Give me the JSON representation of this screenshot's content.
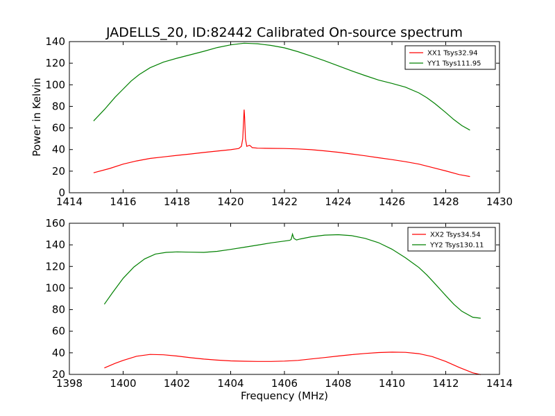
{
  "chart_data": [
    {
      "type": "line",
      "title": "JADELLS_20, ID:82442 Calibrated On-source spectrum",
      "xlabel": "",
      "ylabel": "Power in Kelvin",
      "xlim": [
        1414,
        1430
      ],
      "ylim": [
        0,
        140
      ],
      "xticks": [
        1414,
        1416,
        1418,
        1420,
        1422,
        1424,
        1426,
        1428,
        1430
      ],
      "yticks": [
        0,
        20,
        40,
        60,
        80,
        100,
        120,
        140
      ],
      "grid": false,
      "legend": "top-right",
      "series": [
        {
          "name": "XX1 Tsys32.94",
          "color": "#ff0000",
          "x": [
            1414.9,
            1415.5,
            1416.0,
            1416.5,
            1417.0,
            1417.5,
            1418.0,
            1418.5,
            1419.0,
            1419.5,
            1420.0,
            1420.3,
            1420.4,
            1420.45,
            1420.5,
            1420.52,
            1420.55,
            1420.6,
            1420.7,
            1420.75,
            1420.8,
            1421.0,
            1421.5,
            1422.0,
            1422.5,
            1423.0,
            1423.5,
            1424.0,
            1424.5,
            1425.0,
            1425.5,
            1426.0,
            1426.5,
            1427.0,
            1427.5,
            1428.0,
            1428.5,
            1428.9
          ],
          "values": [
            18.5,
            22.5,
            26.5,
            29.5,
            31.8,
            33.2,
            34.6,
            35.9,
            37.3,
            38.6,
            39.9,
            41.0,
            43.0,
            50.0,
            77.0,
            70.0,
            50.0,
            43.0,
            44.0,
            43.0,
            41.8,
            41.3,
            41.1,
            41.0,
            40.6,
            39.9,
            38.8,
            37.5,
            35.9,
            34.2,
            32.4,
            30.7,
            28.8,
            26.5,
            23.4,
            20.2,
            16.8,
            15.0
          ]
        },
        {
          "name": "YY1 Tsys111.95",
          "color": "#008000",
          "x": [
            1414.9,
            1415.3,
            1415.7,
            1416.0,
            1416.3,
            1416.6,
            1417.0,
            1417.5,
            1418.0,
            1418.5,
            1419.0,
            1419.5,
            1420.0,
            1420.5,
            1420.8,
            1421.0,
            1421.5,
            1422.0,
            1422.5,
            1423.0,
            1423.5,
            1424.0,
            1424.5,
            1425.0,
            1425.5,
            1426.0,
            1426.5,
            1427.0,
            1427.3,
            1427.6,
            1428.0,
            1428.3,
            1428.6,
            1428.9
          ],
          "values": [
            66.5,
            77.0,
            88.5,
            96.0,
            103.5,
            109.5,
            115.8,
            121.0,
            124.6,
            127.8,
            131.0,
            134.5,
            137.0,
            138.5,
            138.2,
            138.0,
            136.5,
            134.2,
            130.7,
            126.6,
            122.2,
            117.6,
            112.9,
            108.5,
            104.4,
            101.3,
            97.8,
            92.5,
            88.0,
            82.5,
            74.3,
            67.8,
            62.2,
            58.0
          ]
        }
      ]
    },
    {
      "type": "line",
      "title": "",
      "xlabel": "Frequency (MHz)",
      "ylabel": "",
      "xlim": [
        1398,
        1414
      ],
      "ylim": [
        20,
        160
      ],
      "xticks": [
        1398,
        1400,
        1402,
        1404,
        1406,
        1408,
        1410,
        1412,
        1414
      ],
      "yticks": [
        20,
        40,
        60,
        80,
        100,
        120,
        140,
        160
      ],
      "grid": false,
      "legend": "top-right",
      "series": [
        {
          "name": "XX2 Tsys34.54",
          "color": "#ff0000",
          "x": [
            1399.3,
            1399.7,
            1400.0,
            1400.5,
            1401.0,
            1401.5,
            1402.0,
            1402.5,
            1403.0,
            1403.5,
            1404.0,
            1404.5,
            1405.0,
            1405.5,
            1406.0,
            1406.5,
            1407.0,
            1407.5,
            1408.0,
            1408.5,
            1409.0,
            1409.5,
            1410.0,
            1410.5,
            1411.0,
            1411.5,
            1412.0,
            1412.5,
            1413.0,
            1413.3
          ],
          "values": [
            26.0,
            30.2,
            33.0,
            36.8,
            38.5,
            38.2,
            37.0,
            35.5,
            34.2,
            33.2,
            32.5,
            32.2,
            32.0,
            32.0,
            32.3,
            33.0,
            34.3,
            35.6,
            37.0,
            38.3,
            39.4,
            40.2,
            40.6,
            40.4,
            39.2,
            36.5,
            32.0,
            26.5,
            21.5,
            19.8
          ]
        },
        {
          "name": "YY2 Tsys130.11",
          "color": "#008000",
          "x": [
            1399.3,
            1399.6,
            1400.0,
            1400.4,
            1400.8,
            1401.2,
            1401.6,
            1402.0,
            1402.5,
            1403.0,
            1403.5,
            1404.0,
            1404.5,
            1405.0,
            1405.5,
            1406.0,
            1406.2,
            1406.25,
            1406.3,
            1406.35,
            1406.45,
            1406.6,
            1407.0,
            1407.5,
            1408.0,
            1408.5,
            1409.0,
            1409.5,
            1410.0,
            1410.5,
            1411.0,
            1411.3,
            1411.6,
            1412.0,
            1412.3,
            1412.6,
            1413.0,
            1413.3
          ],
          "values": [
            85.0,
            95.5,
            109.0,
            119.5,
            127.0,
            131.5,
            133.0,
            133.5,
            133.2,
            133.0,
            134.0,
            135.8,
            137.8,
            139.8,
            141.8,
            143.5,
            144.2,
            145.0,
            150.0,
            146.0,
            144.5,
            145.5,
            147.5,
            149.0,
            149.4,
            148.5,
            146.0,
            142.0,
            136.0,
            128.0,
            119.0,
            112.0,
            104.0,
            93.0,
            85.0,
            78.5,
            73.0,
            72.0
          ]
        }
      ]
    }
  ]
}
